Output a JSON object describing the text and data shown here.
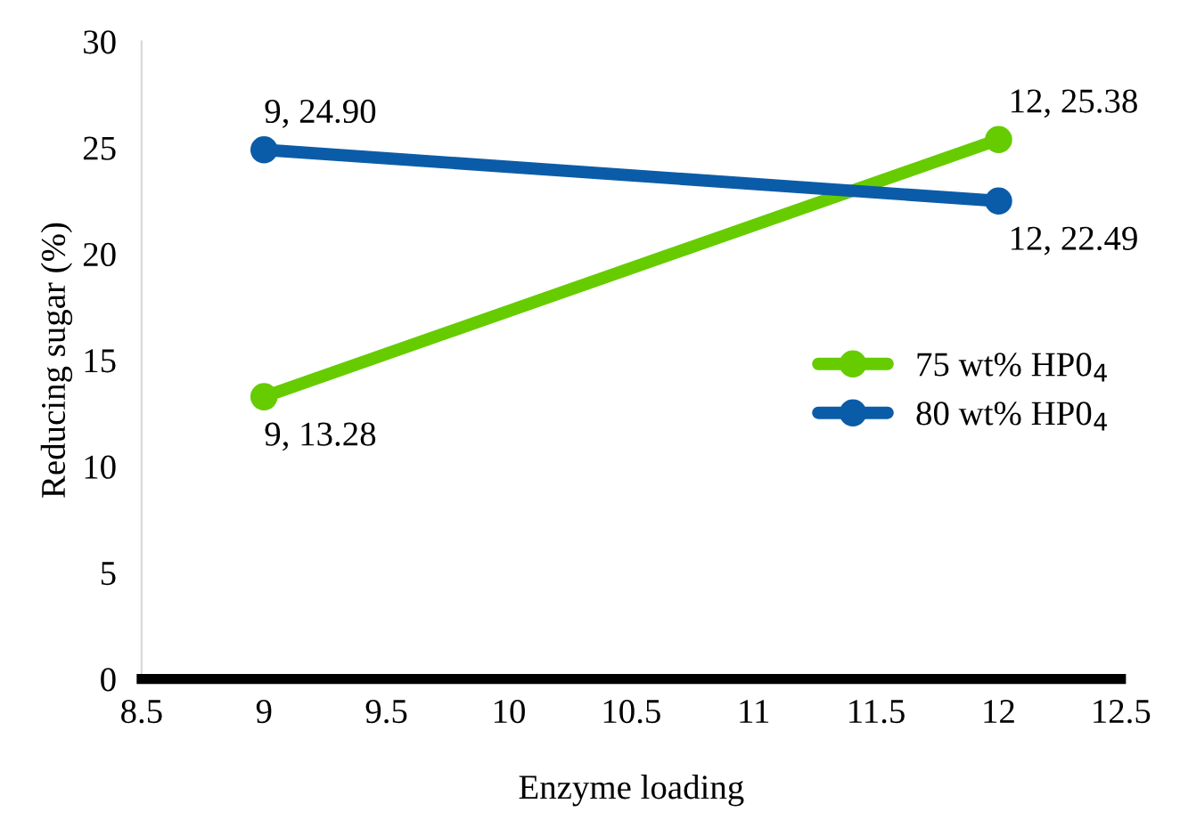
{
  "chart_data": {
    "type": "line",
    "xlabel": "Enzyme loading",
    "ylabel": "Reducing sugar (%)",
    "series": [
      {
        "name": "75 wt% HP0$_{4}$",
        "color": "#66cc00",
        "values": [
          13.28,
          25.38
        ],
        "value_labels": [
          "9, 13.28",
          "12, 25.38"
        ]
      },
      {
        "name": "80 wt% HP0$_{4}$",
        "color": "#0b5ca8",
        "values": [
          24.9,
          22.49
        ],
        "value_labels": [
          "9, 24.90",
          "12, 22.49"
        ]
      }
    ],
    "x": [
      9,
      12
    ],
    "xlim": [
      8.5,
      12.5
    ],
    "xticks": [
      8.5,
      9,
      9.5,
      10,
      10.5,
      11,
      11.5,
      12,
      12.5
    ],
    "ylim": [
      0,
      30
    ],
    "yticks": [
      0,
      5,
      10,
      15,
      20,
      25,
      30
    ],
    "grid": false,
    "legend": "right",
    "marker": "circle",
    "line_style": "solid"
  }
}
